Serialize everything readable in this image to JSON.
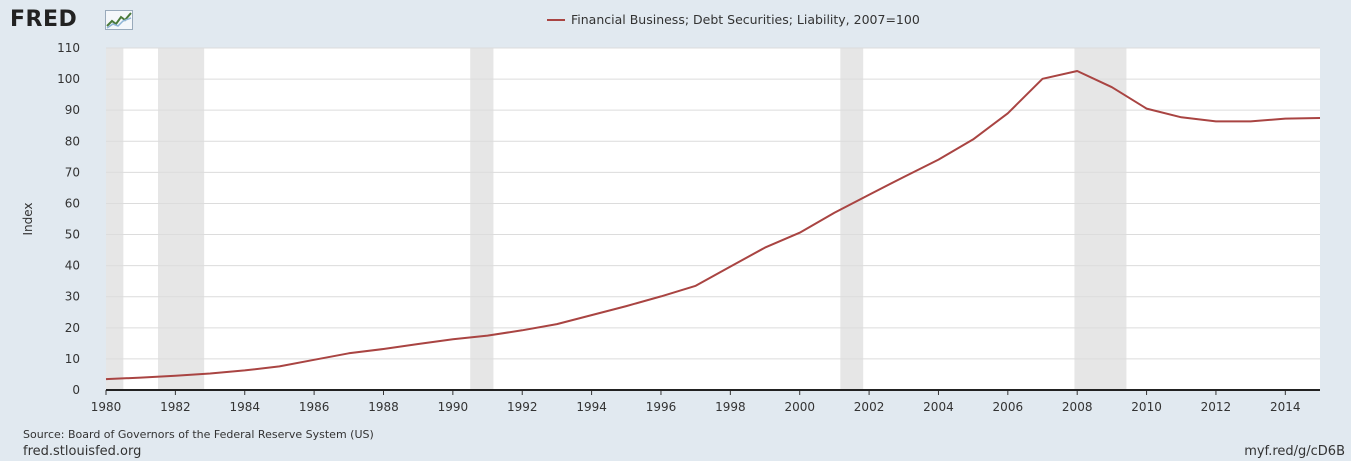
{
  "header": {
    "logo_text": "FRED",
    "logo_icon": "fred-chart-icon"
  },
  "legend": {
    "label": "Financial Business; Debt Securities; Liability, 2007=100",
    "color": "#a94442"
  },
  "footer": {
    "source": "Source: Board of Governors of the Federal Reserve System (US)",
    "site": "fred.stlouisfed.org",
    "shortlink": "myf.red/g/cD6B"
  },
  "chart_data": {
    "type": "line",
    "title": "",
    "xlabel": "",
    "ylabel": "Index",
    "xlim": [
      1980,
      2015
    ],
    "ylim": [
      0,
      110
    ],
    "y_ticks": [
      0,
      10,
      20,
      30,
      40,
      50,
      60,
      70,
      80,
      90,
      100,
      110
    ],
    "x_ticks": [
      1980,
      1982,
      1984,
      1986,
      1988,
      1990,
      1992,
      1994,
      1996,
      1998,
      2000,
      2002,
      2004,
      2006,
      2008,
      2010,
      2012,
      2014
    ],
    "grid": true,
    "legend_position": "top-center",
    "recessions": [
      [
        1980.0,
        1980.5
      ],
      [
        1981.5,
        1982.83
      ],
      [
        1990.5,
        1991.17
      ],
      [
        2001.17,
        2001.83
      ],
      [
        2007.92,
        2009.42
      ]
    ],
    "series": [
      {
        "name": "Financial Business; Debt Securities; Liability, 2007=100",
        "color": "#a94442",
        "x": [
          1980,
          1981,
          1982,
          1983,
          1984,
          1985,
          1986,
          1987,
          1988,
          1989,
          1990,
          1991,
          1992,
          1993,
          1994,
          1995,
          1996,
          1997,
          1998,
          1999,
          2000,
          2001,
          2002,
          2003,
          2004,
          2005,
          2006,
          2007,
          2008,
          2009,
          2010,
          2011,
          2012,
          2013,
          2014,
          2015
        ],
        "values": [
          3.5,
          4.0,
          4.6,
          5.3,
          6.3,
          7.6,
          9.7,
          11.8,
          13.2,
          14.8,
          16.3,
          17.5,
          19.2,
          21.2,
          24.1,
          27.0,
          30.1,
          33.5,
          39.7,
          45.8,
          50.6,
          57.0,
          62.8,
          68.5,
          74.1,
          80.6,
          89.0,
          100.1,
          102.6,
          97.4,
          90.5,
          87.7,
          86.4,
          86.4,
          87.3,
          87.5
        ]
      }
    ]
  }
}
